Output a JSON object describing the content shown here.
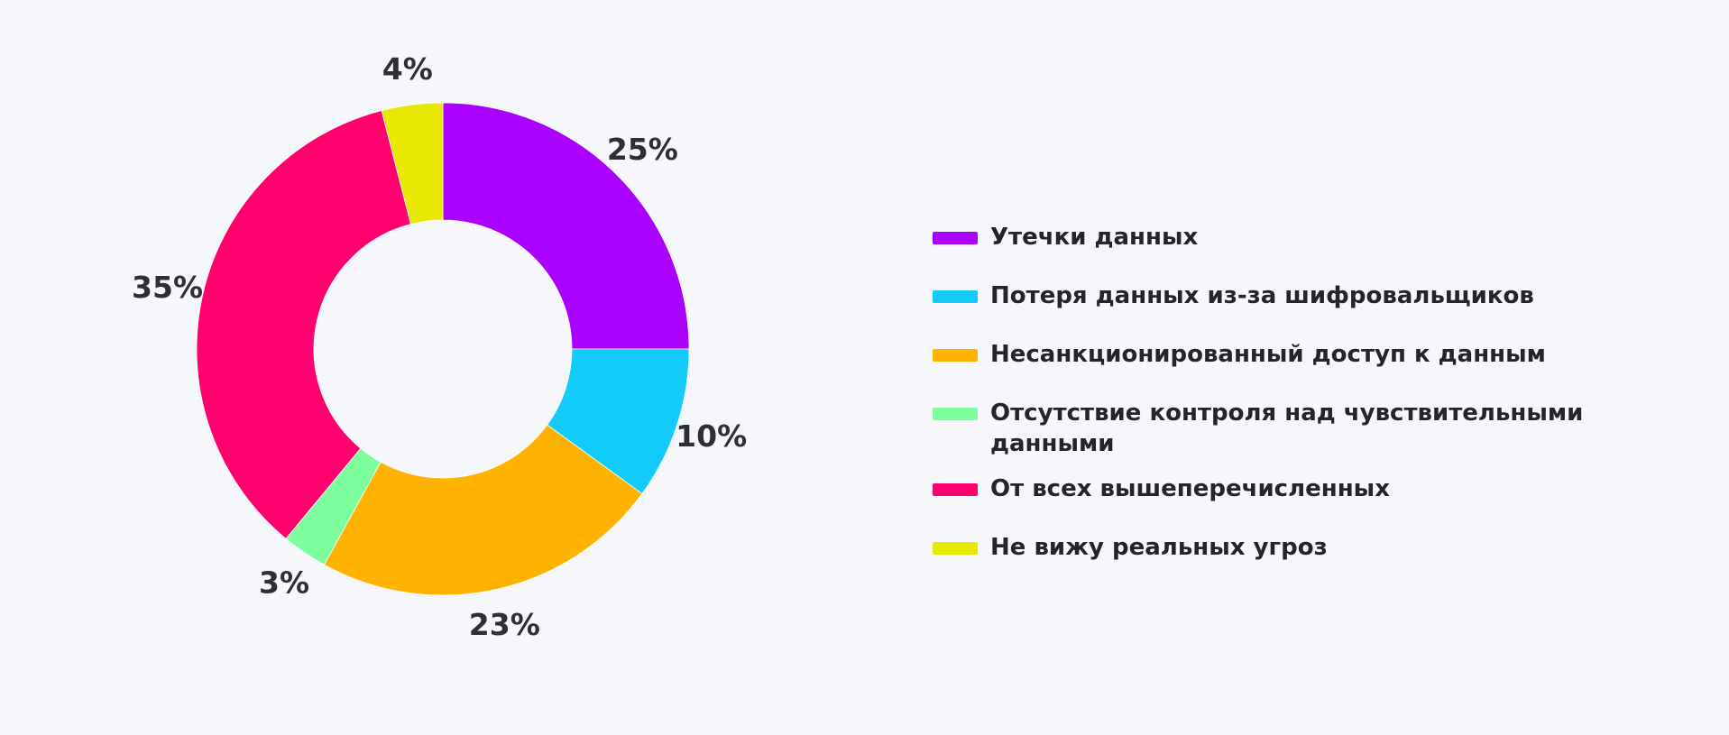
{
  "chart_data": {
    "type": "pie",
    "variant": "donut",
    "start_angle_deg": 0,
    "direction": "clockwise",
    "legend_position": "right",
    "slices": [
      {
        "label": "Утечки данных",
        "value": 25,
        "display": "25%",
        "color": "#aa00ff"
      },
      {
        "label": "Потеря данных из-за шифровальщиков",
        "value": 10,
        "display": "10%",
        "color": "#12cbfb"
      },
      {
        "label": "Несанкционированный доступ к данным",
        "value": 23,
        "display": "23%",
        "color": "#ffb300"
      },
      {
        "label": "Отсутствие контроля над чувствительными данными",
        "value": 3,
        "display": "3%",
        "color": "#7dff9e"
      },
      {
        "label": "От всех вышеперечисленных",
        "value": 35,
        "display": "35%",
        "color": "#ff006e"
      },
      {
        "label": "Не вижу реальных угроз",
        "value": 4,
        "display": "4%",
        "color": "#e8e800"
      }
    ]
  }
}
